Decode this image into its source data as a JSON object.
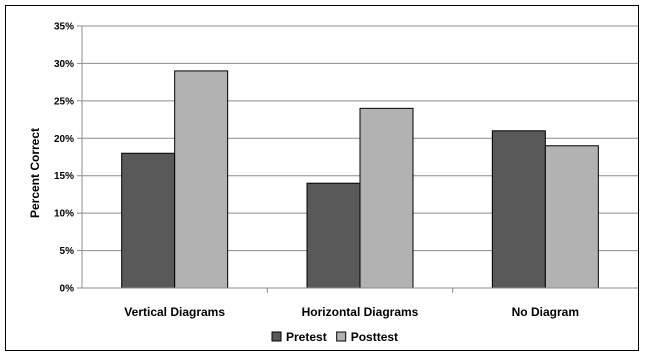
{
  "chart_data": {
    "type": "bar",
    "title": "",
    "xlabel": "",
    "ylabel": "Percent Correct",
    "categories": [
      "Vertical Diagrams",
      "Horizontal Diagrams",
      "No Diagram"
    ],
    "series": [
      {
        "name": "Pretest",
        "values": [
          18,
          14,
          21
        ],
        "color": "#595959"
      },
      {
        "name": "Posttest",
        "values": [
          29,
          24,
          19
        ],
        "color": "#b2b2b2"
      }
    ],
    "ylim": [
      0,
      35
    ],
    "yticks": [
      0,
      5,
      10,
      15,
      20,
      25,
      30,
      35
    ],
    "ytick_labels": [
      "0%",
      "5%",
      "10%",
      "15%",
      "20%",
      "25%",
      "30%",
      "35%"
    ],
    "grid": true,
    "legend_position": "bottom"
  }
}
